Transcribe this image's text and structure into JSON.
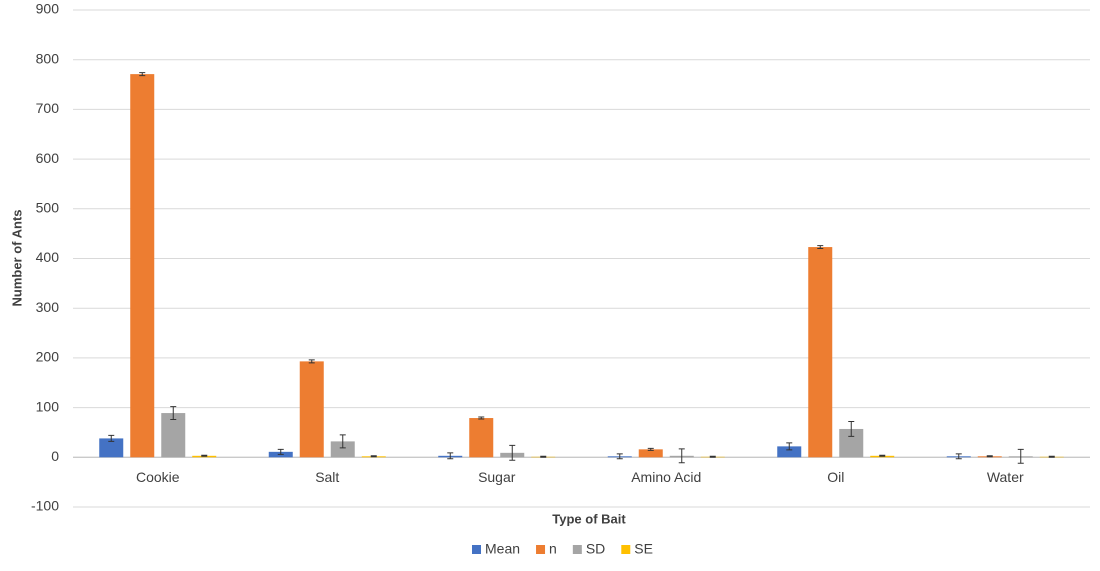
{
  "chart_data": {
    "type": "bar",
    "x_label": "Type of Bait",
    "y_label": "Number of Ants",
    "categories": [
      "Cookie",
      "Salt",
      "Sugar",
      "Amino Acid",
      "Oil",
      "Water"
    ],
    "series": [
      {
        "name": "Mean",
        "color": "#4472c4",
        "values": [
          38,
          11,
          3,
          2,
          22,
          2
        ],
        "errors": [
          6,
          5,
          6,
          5,
          7,
          5
        ]
      },
      {
        "name": "n",
        "color": "#ed7d31",
        "values": [
          771,
          193,
          79,
          16,
          423,
          2
        ],
        "errors": [
          3,
          3,
          2,
          2,
          3,
          1
        ]
      },
      {
        "name": "SD",
        "color": "#a5a5a5",
        "values": [
          89,
          32,
          9,
          3,
          57,
          2
        ],
        "errors": [
          13,
          13,
          15,
          14,
          15,
          14
        ]
      },
      {
        "name": "SE",
        "color": "#ffc000",
        "values": [
          3,
          2,
          1,
          1,
          3,
          1
        ],
        "errors": [
          1,
          1,
          1,
          1,
          1,
          1
        ]
      }
    ],
    "ylim": [
      -100,
      900
    ],
    "yticks": [
      -100,
      0,
      100,
      200,
      300,
      400,
      500,
      600,
      700,
      800,
      900
    ],
    "grid": true,
    "legend": "bottom"
  }
}
